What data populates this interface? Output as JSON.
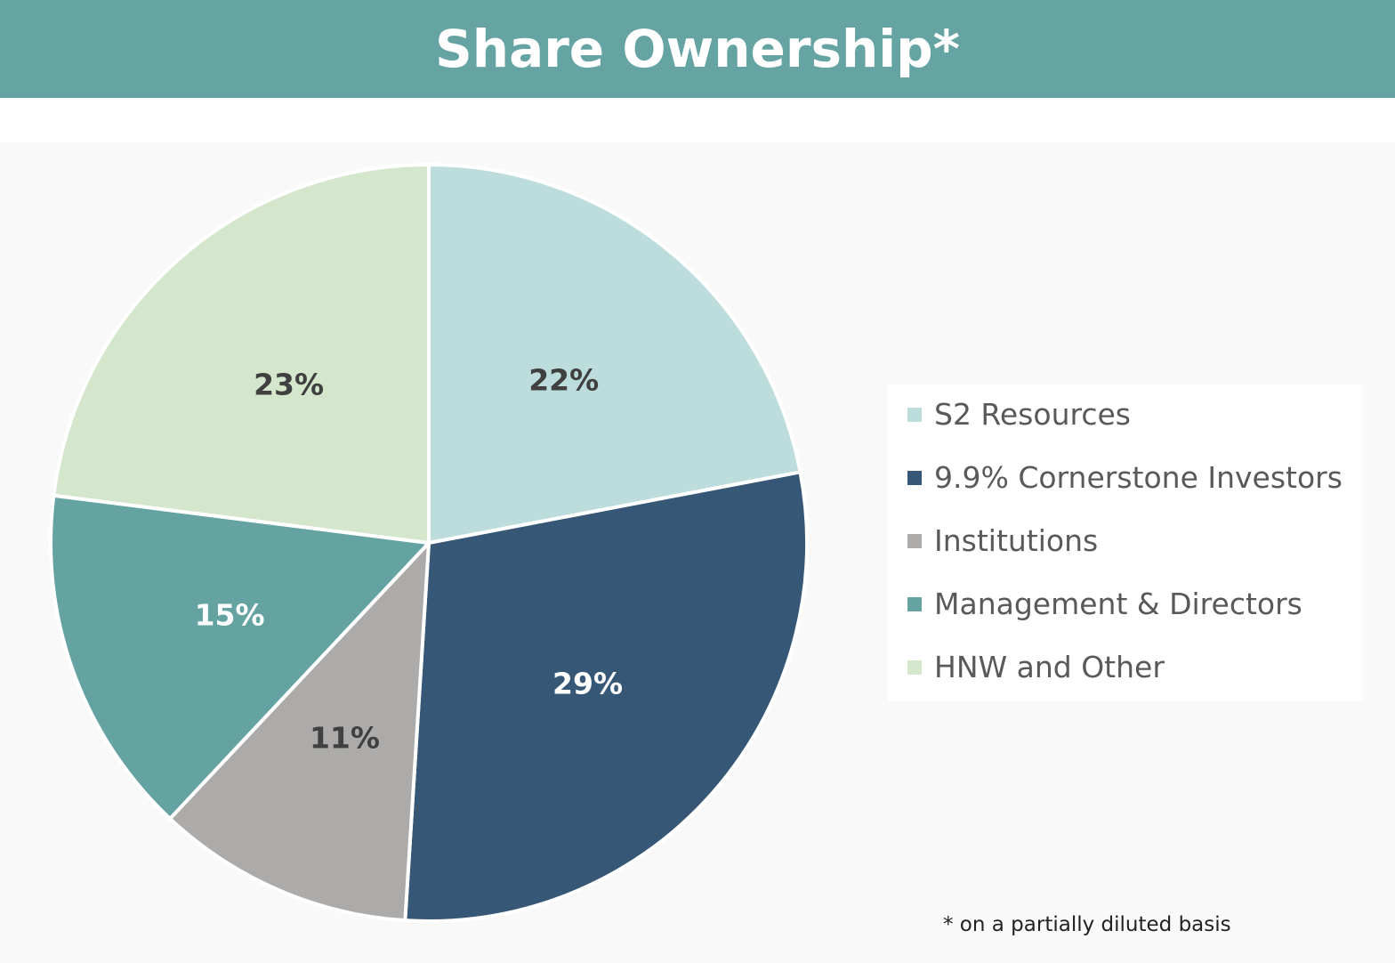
{
  "header": {
    "title": "Share Ownership*"
  },
  "footnote": "*  on a partially diluted basis",
  "chart_data": {
    "type": "pie",
    "title": "Share Ownership*",
    "legend_position": "right",
    "slices": [
      {
        "name": "S2 Resources",
        "value": 22,
        "label": "22%",
        "color": "#bddddd",
        "label_color": "#404040"
      },
      {
        "name": "9.9% Cornerstone Investors",
        "value": 29,
        "label": "29%",
        "color": "#365775",
        "label_color": "#ffffff"
      },
      {
        "name": "Institutions",
        "value": 11,
        "label": "11%",
        "color": "#adabaa",
        "label_color": "#404040"
      },
      {
        "name": "Management & Directors",
        "value": 15,
        "label": "15%",
        "color": "#65a3a3",
        "label_color": "#ffffff"
      },
      {
        "name": "HNW and Other",
        "value": 23,
        "label": "23%",
        "color": "#d4e6cb",
        "label_color": "#404040"
      }
    ]
  }
}
